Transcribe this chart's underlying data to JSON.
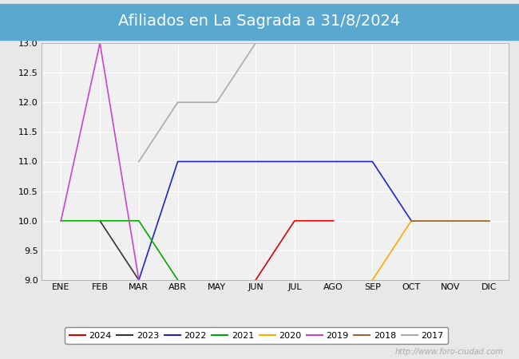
{
  "title": "Afiliados en La Sagrada a 31/8/2024",
  "title_bg_color": "#5aa8d0",
  "xlabel": "",
  "ylabel": "",
  "ylim": [
    9.0,
    13.0
  ],
  "yticks": [
    9.0,
    9.5,
    10.0,
    10.5,
    11.0,
    11.5,
    12.0,
    12.5,
    13.0
  ],
  "months": [
    "ENE",
    "FEB",
    "MAR",
    "ABR",
    "MAY",
    "JUN",
    "JUL",
    "AGO",
    "SEP",
    "OCT",
    "NOV",
    "DIC"
  ],
  "series": [
    {
      "label": "2024",
      "color": "#dd0000",
      "data": [
        [
          6,
          9
        ],
        [
          7,
          10
        ],
        [
          8,
          10
        ]
      ]
    },
    {
      "label": "2023",
      "color": "#333333",
      "data": [
        [
          2,
          10
        ],
        [
          3,
          9
        ]
      ]
    },
    {
      "label": "2022",
      "color": "#2222cc",
      "data": [
        [
          3,
          9
        ],
        [
          4,
          11
        ],
        [
          5,
          11
        ],
        [
          6,
          11
        ],
        [
          7,
          11
        ],
        [
          8,
          11
        ],
        [
          9,
          11
        ],
        [
          10,
          10
        ]
      ]
    },
    {
      "label": "2021",
      "color": "#00aa00",
      "data": [
        [
          1,
          10
        ],
        [
          2,
          10
        ],
        [
          3,
          10
        ],
        [
          4,
          9
        ]
      ]
    },
    {
      "label": "2020",
      "color": "#ffaa00",
      "data": [
        [
          9,
          9
        ],
        [
          10,
          10
        ],
        [
          11,
          10
        ],
        [
          12,
          10
        ]
      ]
    },
    {
      "label": "2019",
      "color": "#cc44cc",
      "data": [
        [
          1,
          10
        ],
        [
          2,
          13
        ],
        [
          3,
          9
        ]
      ]
    },
    {
      "label": "2018",
      "color": "#996633",
      "data": [
        [
          10,
          10
        ],
        [
          11,
          10
        ],
        [
          12,
          10
        ]
      ]
    },
    {
      "label": "2017",
      "color": "#aaaaaa",
      "data": [
        [
          3,
          11
        ],
        [
          4,
          12
        ],
        [
          5,
          12
        ],
        [
          6,
          13
        ]
      ]
    }
  ],
  "watermark": "http://www.foro-ciudad.com",
  "fig_bg_color": "#e8e8e8",
  "plot_bg_color": "#f0f0f0",
  "grid_color": "#ffffff",
  "title_fontsize": 14,
  "title_color": "#ffffff"
}
